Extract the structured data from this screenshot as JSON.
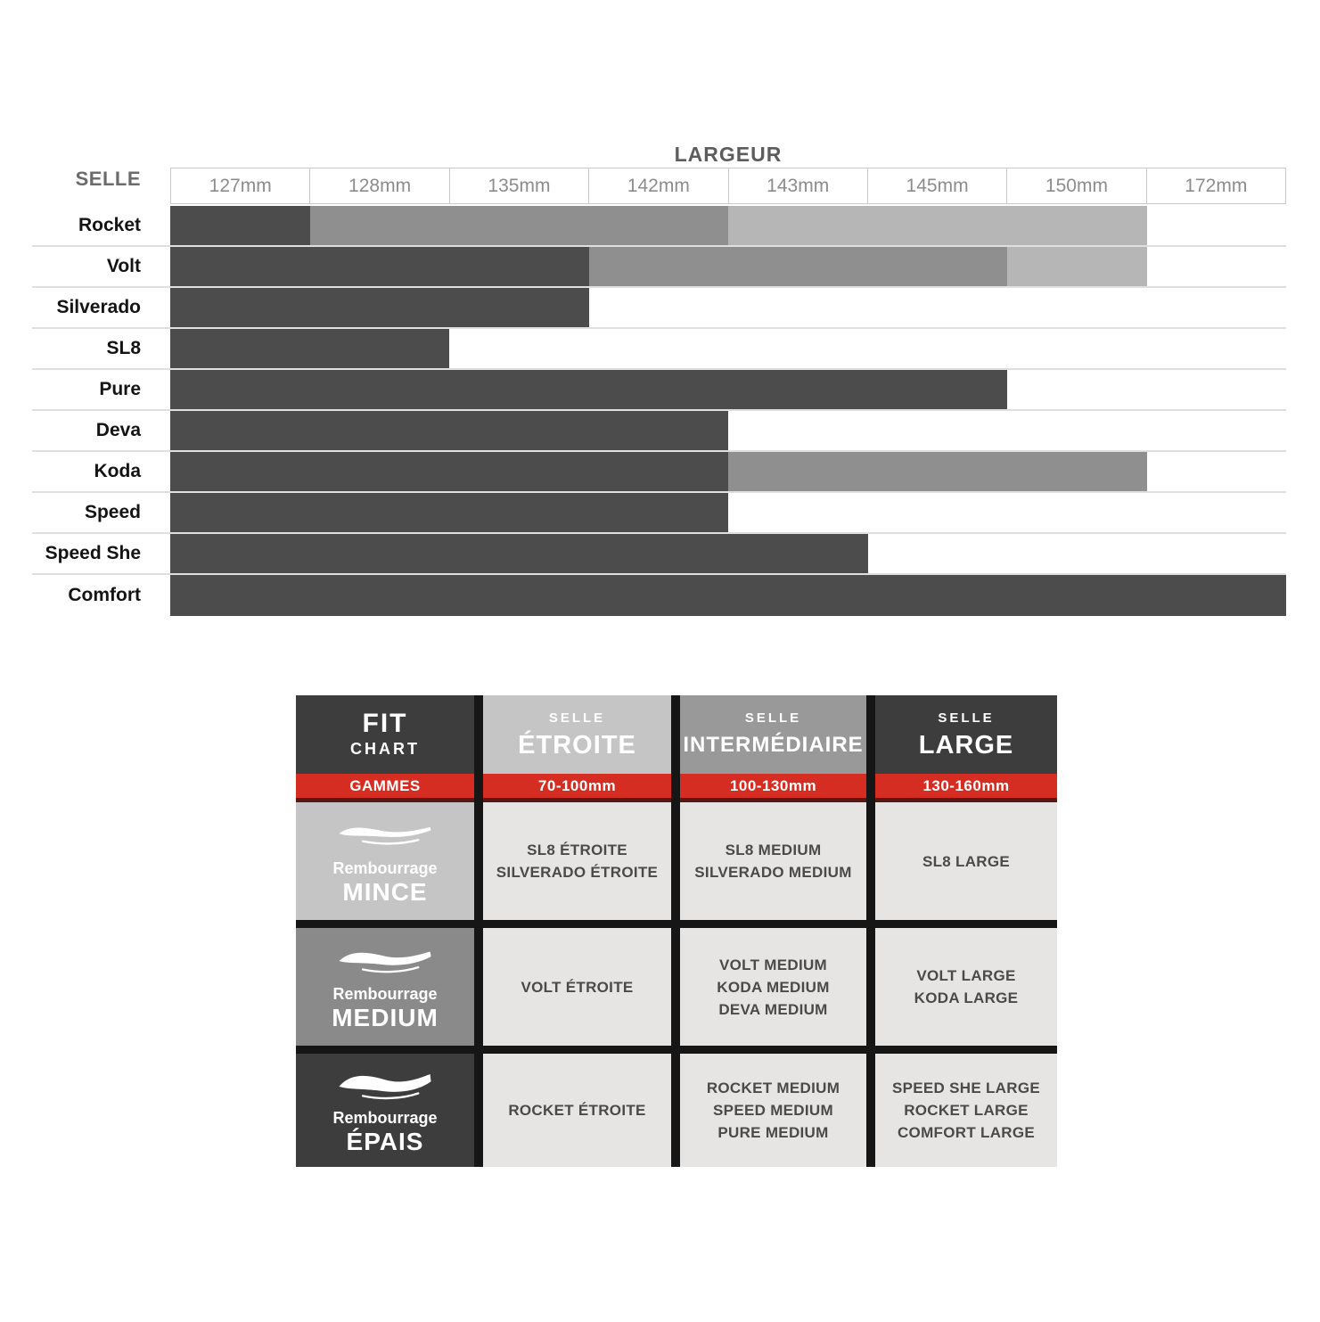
{
  "chart_data": [
    {
      "type": "range_bar",
      "title": "LARGEUR",
      "row_header": "SELLE",
      "columns": [
        "127mm",
        "128mm",
        "135mm",
        "142mm",
        "143mm",
        "145mm",
        "150mm",
        "172mm"
      ],
      "shade_colors": {
        "dark": "#4c4c4c",
        "medium": "#8f8f8f",
        "light": "#b6b6b6"
      },
      "layout": {
        "columns_equal_width": true,
        "grid": "horizontal row separators only",
        "legend": "none"
      },
      "rows": [
        {
          "label": "Rocket",
          "segments": [
            {
              "from_col": "127mm",
              "to_col": "127mm",
              "shade": "dark"
            },
            {
              "from_col": "128mm",
              "to_col": "142mm",
              "shade": "medium"
            },
            {
              "from_col": "143mm",
              "to_col": "150mm",
              "shade": "light"
            }
          ]
        },
        {
          "label": "Volt",
          "segments": [
            {
              "from_col": "127mm",
              "to_col": "135mm",
              "shade": "dark"
            },
            {
              "from_col": "142mm",
              "to_col": "145mm",
              "shade": "medium"
            },
            {
              "from_col": "150mm",
              "to_col": "150mm",
              "shade": "light"
            }
          ]
        },
        {
          "label": "Silverado",
          "segments": [
            {
              "from_col": "127mm",
              "to_col": "135mm",
              "shade": "dark"
            }
          ]
        },
        {
          "label": "SL8",
          "segments": [
            {
              "from_col": "127mm",
              "to_col": "128mm",
              "shade": "dark"
            }
          ]
        },
        {
          "label": "Pure",
          "segments": [
            {
              "from_col": "127mm",
              "to_col": "145mm",
              "shade": "dark"
            }
          ]
        },
        {
          "label": "Deva",
          "segments": [
            {
              "from_col": "127mm",
              "to_col": "142mm",
              "shade": "dark"
            }
          ]
        },
        {
          "label": "Koda",
          "segments": [
            {
              "from_col": "127mm",
              "to_col": "142mm",
              "shade": "dark"
            },
            {
              "from_col": "143mm",
              "to_col": "150mm",
              "shade": "medium"
            }
          ]
        },
        {
          "label": "Speed",
          "segments": [
            {
              "from_col": "127mm",
              "to_col": "142mm",
              "shade": "dark"
            }
          ]
        },
        {
          "label": "Speed She",
          "segments": [
            {
              "from_col": "127mm",
              "to_col": "143mm",
              "shade": "dark"
            }
          ]
        },
        {
          "label": "Comfort",
          "segments": [
            {
              "from_col": "127mm",
              "to_col": "172mm",
              "shade": "dark"
            }
          ]
        }
      ]
    },
    {
      "type": "table",
      "title_cell": {
        "line1": "FIT",
        "line2": "CHART"
      },
      "gammes_label": "GAMMES",
      "columns": [
        {
          "kicker": "SELLE",
          "name": "ÉTROITE",
          "range": "70-100mm"
        },
        {
          "kicker": "SELLE",
          "name": "INTERMÉDIAIRE",
          "range": "100-130mm"
        },
        {
          "kicker": "SELLE",
          "name": "LARGE",
          "range": "130-160mm"
        }
      ],
      "rows": [
        {
          "kicker": "Rembourrage",
          "name": "MINCE",
          "icon": "saddle-thin-icon",
          "cells": [
            [
              "SL8 ÉTROITE",
              "SILVERADO ÉTROITE"
            ],
            [
              "SL8 MEDIUM",
              "SILVERADO MEDIUM"
            ],
            [
              "SL8 LARGE"
            ]
          ]
        },
        {
          "kicker": "Rembourrage",
          "name": "MEDIUM",
          "icon": "saddle-medium-icon",
          "cells": [
            [
              "VOLT ÉTROITE"
            ],
            [
              "VOLT MEDIUM",
              "KODA MEDIUM",
              "DEVA MEDIUM"
            ],
            [
              "VOLT LARGE",
              "KODA LARGE"
            ]
          ]
        },
        {
          "kicker": "Rembourrage",
          "name": "ÉPAIS",
          "icon": "saddle-thick-icon",
          "cells": [
            [
              "ROCKET ÉTROITE"
            ],
            [
              "ROCKET MEDIUM",
              "SPEED MEDIUM",
              "PURE MEDIUM"
            ],
            [
              "SPEED SHE LARGE",
              "ROCKET LARGE",
              "COMFORT LARGE"
            ]
          ]
        }
      ],
      "colors": {
        "red": "#d62d22",
        "red_shadow": "#571913",
        "dark": "#3d3d3d",
        "light_gray": "#c5c5c5",
        "mid_gray": "#999999",
        "row_mid_gray": "#8a8a8a",
        "cell_bg": "#e6e5e3",
        "cell_text": "#4a4a4a"
      }
    }
  ]
}
